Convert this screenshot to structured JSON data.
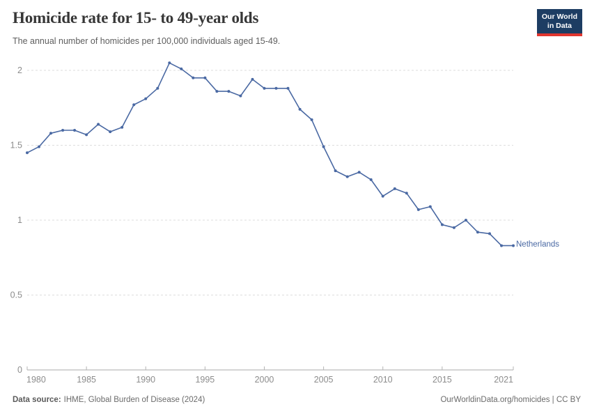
{
  "header": {
    "logo": {
      "line1": "Our World",
      "line2": "in Data"
    }
  },
  "chart_data": {
    "type": "line",
    "title": "Homicide rate for 15- to 49-year olds",
    "subtitle": "The annual number of homicides per 100,000 individuals aged 15-49.",
    "xlabel": "",
    "ylabel": "",
    "xlim": [
      1980,
      2021
    ],
    "ylim": [
      0,
      2.1
    ],
    "x_ticks": [
      1980,
      1985,
      1990,
      1995,
      2000,
      2005,
      2010,
      2015,
      2021
    ],
    "y_ticks": [
      0,
      0.5,
      1,
      1.5,
      2
    ],
    "grid": "horizontal-dashed",
    "legend_position": "end-of-line",
    "series": [
      {
        "name": "Netherlands",
        "color": "#4a69a3",
        "x": [
          1980,
          1981,
          1982,
          1983,
          1984,
          1985,
          1986,
          1987,
          1988,
          1989,
          1990,
          1991,
          1992,
          1993,
          1994,
          1995,
          1996,
          1997,
          1998,
          1999,
          2000,
          2001,
          2002,
          2003,
          2004,
          2005,
          2006,
          2007,
          2008,
          2009,
          2010,
          2011,
          2012,
          2013,
          2014,
          2015,
          2016,
          2017,
          2018,
          2019,
          2020,
          2021
        ],
        "values": [
          1.45,
          1.49,
          1.58,
          1.6,
          1.6,
          1.57,
          1.64,
          1.59,
          1.62,
          1.77,
          1.81,
          1.88,
          2.05,
          2.01,
          1.95,
          1.95,
          1.86,
          1.86,
          1.83,
          1.94,
          1.88,
          1.88,
          1.88,
          1.74,
          1.67,
          1.49,
          1.33,
          1.29,
          1.32,
          1.27,
          1.16,
          1.21,
          1.18,
          1.07,
          1.09,
          0.97,
          0.95,
          1.0,
          0.92,
          0.91,
          0.83,
          0.83
        ]
      }
    ]
  },
  "footer": {
    "source_label": "Data source:",
    "source_value": "IHME, Global Burden of Disease (2024)",
    "credit": "OurWorldinData.org/homicides | CC BY"
  }
}
